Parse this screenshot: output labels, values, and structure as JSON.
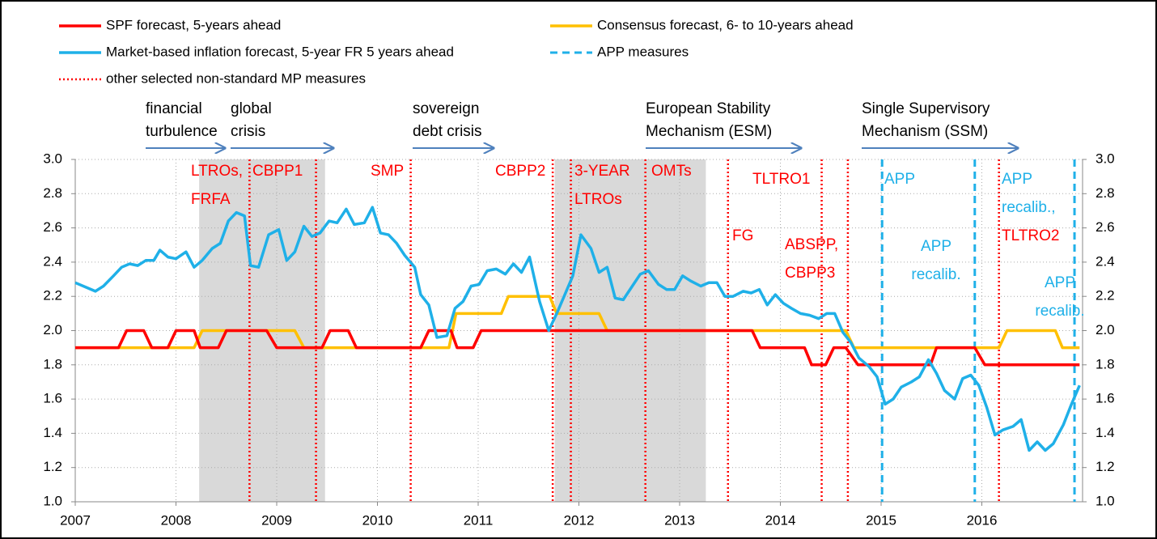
{
  "chart_data": {
    "type": "line",
    "series": [
      {
        "name": "SPF forecast, 5-years ahead",
        "color": "#ff0000",
        "x": [
          2007.0,
          2007.43,
          2007.51,
          2007.68,
          2007.76,
          2007.92,
          2008.0,
          2008.18,
          2008.24,
          2008.42,
          2008.5,
          2008.9,
          2009.0,
          2009.45,
          2009.53,
          2009.71,
          2009.79,
          2010.43,
          2010.51,
          2010.73,
          2010.79,
          2010.95,
          2011.03,
          2013.72,
          2013.8,
          2014.24,
          2014.31,
          2014.45,
          2014.53,
          2014.65,
          2014.77,
          2015.49,
          2015.55,
          2015.93,
          2016.03,
          2016.97
        ],
        "values": [
          1.9,
          1.9,
          2.0,
          2.0,
          1.9,
          1.9,
          2.0,
          2.0,
          1.9,
          1.9,
          2.0,
          2.0,
          1.9,
          1.9,
          2.0,
          2.0,
          1.9,
          1.9,
          2.0,
          2.0,
          1.9,
          1.9,
          2.0,
          2.0,
          1.9,
          1.9,
          1.8,
          1.8,
          1.9,
          1.9,
          1.8,
          1.8,
          1.9,
          1.9,
          1.8,
          1.8
        ]
      },
      {
        "name": "Consensus forecast, 6- to 10-years ahead",
        "color": "#ffc000",
        "x": [
          2007.0,
          2008.18,
          2008.26,
          2009.18,
          2009.27,
          2010.71,
          2010.78,
          2011.23,
          2011.3,
          2011.71,
          2011.78,
          2012.2,
          2012.28,
          2014.65,
          2014.73,
          2016.17,
          2016.25,
          2016.73,
          2016.8,
          2016.97
        ],
        "values": [
          1.9,
          1.9,
          2.0,
          2.0,
          1.9,
          1.9,
          2.1,
          2.1,
          2.2,
          2.2,
          2.1,
          2.1,
          2.0,
          2.0,
          1.9,
          1.9,
          2.0,
          2.0,
          1.9,
          1.9
        ]
      },
      {
        "name": "Market-based inflation forecast, 5-year FR 5 years ahead",
        "color": "#1fb0e8",
        "x": [
          2007.0,
          2007.12,
          2007.2,
          2007.28,
          2007.38,
          2007.46,
          2007.54,
          2007.62,
          2007.7,
          2007.78,
          2007.84,
          2007.92,
          2008.0,
          2008.1,
          2008.18,
          2008.26,
          2008.36,
          2008.44,
          2008.52,
          2008.6,
          2008.68,
          2008.74,
          2008.82,
          2008.92,
          2009.02,
          2009.1,
          2009.18,
          2009.27,
          2009.35,
          2009.43,
          2009.52,
          2009.6,
          2009.69,
          2009.77,
          2009.87,
          2009.95,
          2010.03,
          2010.11,
          2010.19,
          2010.27,
          2010.37,
          2010.43,
          2010.51,
          2010.59,
          2010.69,
          2010.77,
          2010.85,
          2010.93,
          2011.01,
          2011.09,
          2011.18,
          2011.27,
          2011.35,
          2011.43,
          2011.51,
          2011.61,
          2011.7,
          2011.78,
          2011.86,
          2011.94,
          2012.02,
          2012.12,
          2012.2,
          2012.28,
          2012.36,
          2012.44,
          2012.53,
          2012.61,
          2012.69,
          2012.79,
          2012.87,
          2012.95,
          2013.03,
          2013.11,
          2013.21,
          2013.29,
          2013.37,
          2013.45,
          2013.53,
          2013.63,
          2013.71,
          2013.79,
          2013.87,
          2013.95,
          2014.03,
          2014.11,
          2014.2,
          2014.29,
          2014.38,
          2014.46,
          2014.54,
          2014.62,
          2014.7,
          2014.78,
          2014.88,
          2014.96,
          2015.04,
          2015.12,
          2015.2,
          2015.3,
          2015.38,
          2015.47,
          2015.55,
          2015.63,
          2015.73,
          2015.81,
          2015.89,
          2015.97,
          2016.05,
          2016.13,
          2016.21,
          2016.31,
          2016.39,
          2016.47,
          2016.55,
          2016.63,
          2016.71,
          2016.81,
          2016.89,
          2016.97
        ],
        "values": [
          2.28,
          2.25,
          2.23,
          2.26,
          2.32,
          2.37,
          2.39,
          2.38,
          2.41,
          2.41,
          2.47,
          2.43,
          2.42,
          2.46,
          2.37,
          2.41,
          2.48,
          2.51,
          2.64,
          2.69,
          2.67,
          2.38,
          2.37,
          2.56,
          2.59,
          2.41,
          2.46,
          2.61,
          2.55,
          2.57,
          2.64,
          2.63,
          2.71,
          2.62,
          2.63,
          2.72,
          2.57,
          2.56,
          2.51,
          2.44,
          2.37,
          2.21,
          2.15,
          1.96,
          1.97,
          2.13,
          2.17,
          2.26,
          2.27,
          2.35,
          2.36,
          2.33,
          2.39,
          2.34,
          2.43,
          2.17,
          2.0,
          2.1,
          2.21,
          2.32,
          2.56,
          2.48,
          2.34,
          2.37,
          2.19,
          2.18,
          2.26,
          2.33,
          2.35,
          2.27,
          2.24,
          2.24,
          2.32,
          2.29,
          2.26,
          2.28,
          2.28,
          2.2,
          2.2,
          2.23,
          2.22,
          2.24,
          2.15,
          2.21,
          2.16,
          2.13,
          2.1,
          2.09,
          2.07,
          2.1,
          2.1,
          1.99,
          1.93,
          1.84,
          1.79,
          1.73,
          1.57,
          1.6,
          1.67,
          1.7,
          1.73,
          1.83,
          1.75,
          1.65,
          1.6,
          1.72,
          1.74,
          1.68,
          1.55,
          1.39,
          1.42,
          1.44,
          1.48,
          1.3,
          1.35,
          1.3,
          1.34,
          1.45,
          1.57,
          1.68
        ]
      }
    ],
    "measures": [
      {
        "name": "other selected non-standard MP measures",
        "color": "#ff0000",
        "dash": "dotted",
        "x": [
          2008.73,
          2009.39,
          2010.33,
          2011.74,
          2011.92,
          2012.66,
          2013.48,
          2014.41,
          2014.67,
          2016.17
        ]
      },
      {
        "name": "APP measures",
        "color": "#1fb0e8",
        "dash": "dashed",
        "x": [
          2015.01,
          2015.93,
          2016.92
        ]
      }
    ],
    "shaded": [
      [
        2008.23,
        2009.48
      ],
      [
        2011.76,
        2013.26
      ]
    ],
    "periods": [
      {
        "lines": [
          "financial",
          "turbulence"
        ]
      },
      {
        "lines": [
          "global",
          "crisis"
        ]
      },
      {
        "lines": [
          "sovereign",
          "debt crisis"
        ]
      },
      {
        "lines": [
          "European Stability",
          "Mechanism (ESM)"
        ]
      },
      {
        "lines": [
          "Single Supervisory",
          "Mechanism (SSM)"
        ]
      }
    ],
    "annotations": [
      {
        "lines": [
          "LTROs,",
          "FRFA"
        ],
        "color": "#ff0000"
      },
      {
        "lines": [
          "CBPP1"
        ],
        "color": "#ff0000"
      },
      {
        "lines": [
          "SMP"
        ],
        "color": "#ff0000"
      },
      {
        "lines": [
          "CBPP2"
        ],
        "color": "#ff0000"
      },
      {
        "lines": [
          "3-YEAR",
          "LTROs"
        ],
        "color": "#ff0000"
      },
      {
        "lines": [
          "OMTs"
        ],
        "color": "#ff0000"
      },
      {
        "lines": [
          "TLTRO1"
        ],
        "color": "#ff0000"
      },
      {
        "lines": [
          "FG"
        ],
        "color": "#ff0000"
      },
      {
        "lines": [
          "ABSPP,",
          "CBPP3"
        ],
        "color": "#ff0000"
      },
      {
        "lines": [
          "APP"
        ],
        "color": "#1fb0e8"
      },
      {
        "lines": [
          "APP",
          "recalib."
        ],
        "color": "#1fb0e8"
      },
      {
        "lines": [
          "APP",
          "recalib.,"
        ],
        "color": "#1fb0e8"
      },
      {
        "lines": [
          "TLTRO2"
        ],
        "color": "#ff0000"
      },
      {
        "lines": [
          "APP",
          "recalib."
        ],
        "color": "#1fb0e8"
      }
    ],
    "xlim": [
      2007,
      2017
    ],
    "xticks": [
      2007,
      2008,
      2009,
      2010,
      2011,
      2012,
      2013,
      2014,
      2015,
      2016
    ],
    "ylim": [
      1,
      3
    ],
    "yticks": [
      {
        "value": 1,
        "label": "1.0"
      },
      {
        "value": 1.2,
        "label": "1.2"
      },
      {
        "value": 1.4,
        "label": "1.4"
      },
      {
        "value": 1.6,
        "label": "1.6"
      },
      {
        "value": 1.8,
        "label": "1.8"
      },
      {
        "value": 2,
        "label": "2.0"
      },
      {
        "value": 2.2,
        "label": "2.2"
      },
      {
        "value": 2.4,
        "label": "2.4"
      },
      {
        "value": 2.6,
        "label": "2.6"
      },
      {
        "value": 2.8,
        "label": "2.8"
      },
      {
        "value": 3,
        "label": "3.0"
      }
    ],
    "y2lim": [
      1,
      3
    ],
    "y2ticks": [
      {
        "value": 1,
        "label": "1.0"
      },
      {
        "value": 1.2,
        "label": "1.2"
      },
      {
        "value": 1.4,
        "label": "1.4"
      },
      {
        "value": 1.6,
        "label": "1.6"
      },
      {
        "value": 1.8,
        "label": "1.8"
      },
      {
        "value": 2,
        "label": "2.0"
      },
      {
        "value": 2.2,
        "label": "2.2"
      },
      {
        "value": 2.4,
        "label": "2.4"
      },
      {
        "value": 2.6,
        "label": "2.6"
      },
      {
        "value": 2.8,
        "label": "2.8"
      },
      {
        "value": 3,
        "label": "3.0"
      }
    ],
    "grid": true
  }
}
